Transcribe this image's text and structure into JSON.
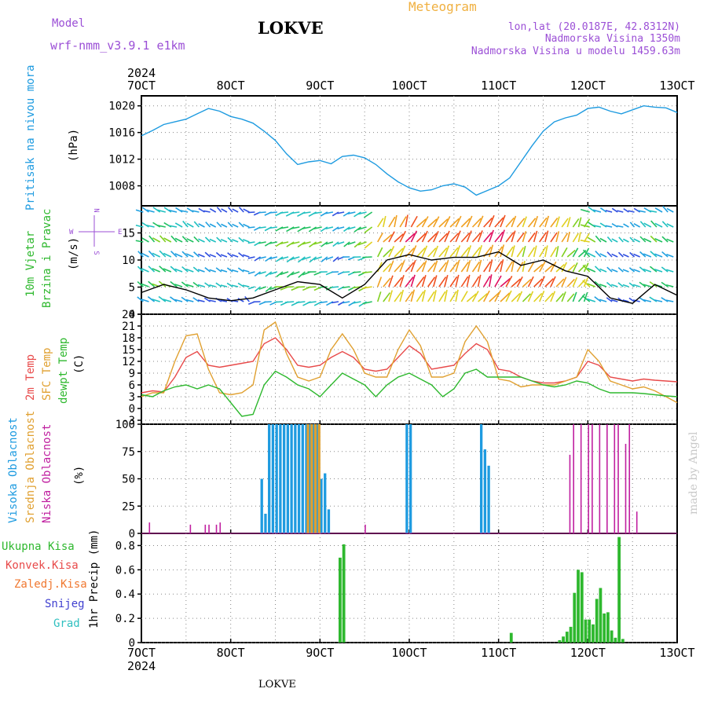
{
  "header": {
    "model_label": "Model",
    "model_name": "wrf-nmm_v3.9.1 e1km",
    "station": "LOKVE",
    "meteogram": "Meteogram",
    "lonlat": "lon,lat (20.0187E, 42.8312N)",
    "altitude": "Nadmorska Visina 1350m",
    "model_altitude": "Nadmorska Visina u modelu 1459.63m"
  },
  "colors": {
    "purple": "#9b4fd6",
    "orange": "#f0b040",
    "blue": "#1e9be0",
    "green": "#2eb82e",
    "red": "#e84a4a",
    "yellow": "#e0a030",
    "magenta": "#c020a0",
    "violet": "#4040d0",
    "cyan": "#30c0c0"
  },
  "time_axis": {
    "year": "2024",
    "ticks": [
      "7OCT",
      "8OCT",
      "9OCT",
      "10OCT",
      "11OCT",
      "12OCT",
      "13OCT"
    ]
  },
  "footer": {
    "station": "LOKVE",
    "credit": "made by Angel"
  },
  "panels": {
    "pressure": {
      "ylabel_1": "Pritisak na nivou mora",
      "ylabel_2": "(hPa)",
      "ticks": [
        "1008",
        "1012",
        "1016",
        "1020"
      ]
    },
    "wind": {
      "ylabel_1": "10m Vjetar",
      "ylabel_2": "Brzina i Pravac",
      "ylabel_3": "(m/s)",
      "ticks": [
        "0",
        "5",
        "10",
        "15"
      ],
      "compass_n": "N",
      "compass_s": "S",
      "compass_e": "E",
      "compass_w": "W"
    },
    "temp": {
      "ylabel_1": "2m Temp",
      "ylabel_2": "SFC Temp",
      "ylabel_3": "dewpt Temp",
      "ylabel_4": "(C)",
      "ticks": [
        "-3",
        "0",
        "3",
        "6",
        "9",
        "12",
        "15",
        "18",
        "21",
        "24"
      ]
    },
    "cloud": {
      "ylabel_1": "Visoka Oblacnost",
      "ylabel_2": "Srednja Oblacnost",
      "ylabel_3": "Niska Oblacnost",
      "ylabel_4": "(%)",
      "ticks": [
        "0",
        "25",
        "50",
        "75",
        "100"
      ]
    },
    "precip": {
      "legend": [
        "Ukupna Kisa",
        "Konvek.Kisa",
        "Zaledj.Kisa",
        "Snijeg",
        "Grad"
      ],
      "ylabel": "1hr Precip (mm)",
      "ticks": [
        "0",
        "0.2",
        "0.4",
        "0.6",
        "0.8"
      ]
    }
  },
  "chart_data": [
    {
      "type": "line",
      "ylabel": "(hPa)",
      "ylim": [
        1005,
        1021.5
      ],
      "xlim": [
        0,
        144
      ],
      "x_unit": "hours from 7OCT 00UTC",
      "series": [
        {
          "color": "#1e9be0",
          "x": [
            0,
            3,
            6,
            9,
            12,
            15,
            18,
            21,
            24,
            27,
            30,
            33,
            36,
            39,
            42,
            45,
            48,
            51,
            54,
            57,
            60,
            63,
            66,
            69,
            72,
            75,
            78,
            81,
            84,
            87,
            90,
            93,
            96,
            99,
            102,
            105,
            108,
            111,
            114,
            117,
            120,
            123,
            126,
            129,
            132,
            135,
            138,
            141,
            144
          ],
          "y": [
            1015.5,
            1016.3,
            1017.2,
            1017.6,
            1018.0,
            1018.8,
            1019.6,
            1019.2,
            1018.4,
            1018.0,
            1017.4,
            1016.2,
            1014.8,
            1012.8,
            1011.2,
            1011.6,
            1011.8,
            1011.3,
            1012.4,
            1012.6,
            1012.2,
            1011.2,
            1009.8,
            1008.6,
            1007.7,
            1007.2,
            1007.4,
            1008.0,
            1008.3,
            1007.8,
            1006.6,
            1007.3,
            1008.0,
            1009.2,
            1011.6,
            1014.0,
            1016.2,
            1017.6,
            1018.2,
            1018.6,
            1019.6,
            1019.8,
            1019.2,
            1018.8,
            1019.4,
            1020.0,
            1019.8,
            1019.7,
            1019.0
          ]
        }
      ]
    },
    {
      "type": "line",
      "ylabel": "(m/s)",
      "ylim": [
        0,
        20
      ],
      "xlim": [
        0,
        144
      ],
      "series": [
        {
          "color": "#000000",
          "x": [
            0,
            6,
            12,
            18,
            24,
            30,
            36,
            42,
            48,
            54,
            60,
            66,
            72,
            78,
            84,
            90,
            96,
            102,
            108,
            114,
            120,
            126,
            132,
            138,
            144
          ],
          "y": [
            4,
            5.5,
            4.5,
            3,
            2.5,
            3,
            4.5,
            6,
            5.5,
            3,
            5.5,
            10,
            11,
            10,
            10.5,
            10.5,
            11.5,
            9,
            10,
            8,
            7,
            3,
            2,
            5.5,
            3.5
          ]
        }
      ]
    },
    {
      "type": "line",
      "ylabel": "(C)",
      "ylim": [
        -4,
        24
      ],
      "xlim": [
        0,
        144
      ],
      "series": [
        {
          "name": "2m Temp",
          "color": "#e84a4a",
          "x": [
            0,
            3,
            6,
            9,
            12,
            15,
            18,
            21,
            24,
            27,
            30,
            33,
            36,
            39,
            42,
            45,
            48,
            51,
            54,
            57,
            60,
            63,
            66,
            69,
            72,
            75,
            78,
            81,
            84,
            87,
            90,
            93,
            96,
            99,
            102,
            105,
            108,
            111,
            114,
            117,
            120,
            123,
            126,
            129,
            132,
            135,
            138,
            141,
            144
          ],
          "y": [
            4,
            4.5,
            4.2,
            8,
            13,
            14.5,
            11,
            10.5,
            11,
            11.5,
            12,
            16.5,
            18,
            15,
            11,
            10.5,
            11,
            13,
            14.5,
            13,
            10,
            9.5,
            10,
            13,
            16,
            14,
            10,
            10.5,
            11,
            14,
            16.5,
            15,
            10,
            9.5,
            8,
            7,
            6.5,
            6.5,
            7,
            8,
            12,
            11,
            8,
            7.5,
            7,
            7.5,
            7.2,
            7,
            6.8
          ]
        },
        {
          "name": "SFC Temp",
          "color": "#e0a030",
          "x": [
            0,
            3,
            6,
            9,
            12,
            15,
            18,
            21,
            24,
            27,
            30,
            33,
            36,
            39,
            42,
            45,
            48,
            51,
            54,
            57,
            60,
            63,
            66,
            69,
            72,
            75,
            78,
            81,
            84,
            87,
            90,
            93,
            96,
            99,
            102,
            105,
            108,
            111,
            114,
            117,
            120,
            123,
            126,
            129,
            132,
            135,
            138,
            141,
            144
          ],
          "y": [
            3,
            4,
            4,
            12,
            18.5,
            19,
            10,
            4,
            3.5,
            4,
            6,
            20,
            22,
            14,
            8,
            7,
            8,
            15,
            19,
            15,
            9,
            8,
            8,
            15,
            20,
            16,
            8,
            8,
            9,
            17,
            21,
            17,
            7.5,
            7,
            5.5,
            6,
            6,
            6,
            7,
            8,
            15,
            12,
            7,
            6,
            5,
            5.5,
            4.5,
            3,
            1.5
          ]
        },
        {
          "name": "dewpt Temp",
          "color": "#2eb82e",
          "x": [
            0,
            3,
            6,
            9,
            12,
            15,
            18,
            21,
            24,
            27,
            30,
            33,
            36,
            39,
            42,
            45,
            48,
            51,
            54,
            57,
            60,
            63,
            66,
            69,
            72,
            75,
            78,
            81,
            84,
            87,
            90,
            93,
            96,
            99,
            102,
            105,
            108,
            111,
            114,
            117,
            120,
            123,
            126,
            129,
            132,
            135,
            138,
            141,
            144
          ],
          "y": [
            3.5,
            3,
            4.5,
            5.5,
            6,
            5,
            6,
            5,
            1.5,
            -2,
            -1.5,
            6,
            9.5,
            8,
            6,
            5,
            3,
            6,
            9,
            7.5,
            6,
            3,
            6,
            8,
            9,
            7.5,
            6,
            3,
            5,
            9,
            10,
            8,
            8,
            8,
            8,
            7,
            6,
            5.5,
            6,
            7,
            6.5,
            5,
            4,
            4,
            4,
            3.8,
            3.5,
            3.2,
            3
          ]
        }
      ]
    },
    {
      "type": "bar",
      "ylabel": "(%)",
      "ylim": [
        0,
        100
      ],
      "xlim": [
        0,
        144
      ],
      "series": [
        {
          "name": "Visoka Oblacnost",
          "color": "#1e9be0",
          "x": [
            32,
            33,
            34,
            35,
            36,
            37,
            38,
            39,
            40,
            41,
            42,
            43,
            44,
            45,
            46,
            47,
            48,
            49,
            50,
            71,
            72,
            91,
            92,
            93
          ],
          "y": [
            50,
            18,
            100,
            100,
            100,
            100,
            100,
            100,
            100,
            100,
            100,
            100,
            100,
            100,
            100,
            100,
            50,
            55,
            22,
            100,
            100,
            100,
            77,
            62
          ]
        },
        {
          "name": "Srednja Oblacnost",
          "color": "#e0a030",
          "x": [
            44,
            45,
            46,
            47
          ],
          "y": [
            100,
            100,
            100,
            100
          ]
        },
        {
          "name": "Niska Oblacnost",
          "color": "#c020a0",
          "x": [
            2,
            13,
            17,
            18,
            20,
            21,
            60,
            115,
            116,
            118,
            120,
            121,
            123,
            125,
            127,
            128,
            130,
            131,
            133
          ],
          "y": [
            10,
            8,
            8,
            8,
            8,
            10,
            8,
            72,
            100,
            100,
            100,
            100,
            100,
            100,
            100,
            100,
            82,
            100,
            20
          ]
        }
      ]
    },
    {
      "type": "bar",
      "ylabel": "1hr Precip (mm)",
      "ylim": [
        0,
        0.9
      ],
      "xlim": [
        0,
        144
      ],
      "series": [
        {
          "name": "Ukupna Kisa",
          "color": "#2eb82e",
          "x": [
            53,
            54,
            99,
            112,
            113,
            114,
            115,
            116,
            117,
            118,
            119,
            120,
            121,
            122,
            123,
            124,
            125,
            126,
            127,
            128,
            129
          ],
          "y": [
            0.7,
            0.81,
            0.08,
            0.02,
            0.05,
            0.09,
            0.13,
            0.41,
            0.6,
            0.58,
            0.19,
            0.19,
            0.15,
            0.36,
            0.45,
            0.24,
            0.25,
            0.1,
            0.04,
            0.87,
            0.03
          ]
        }
      ]
    }
  ]
}
